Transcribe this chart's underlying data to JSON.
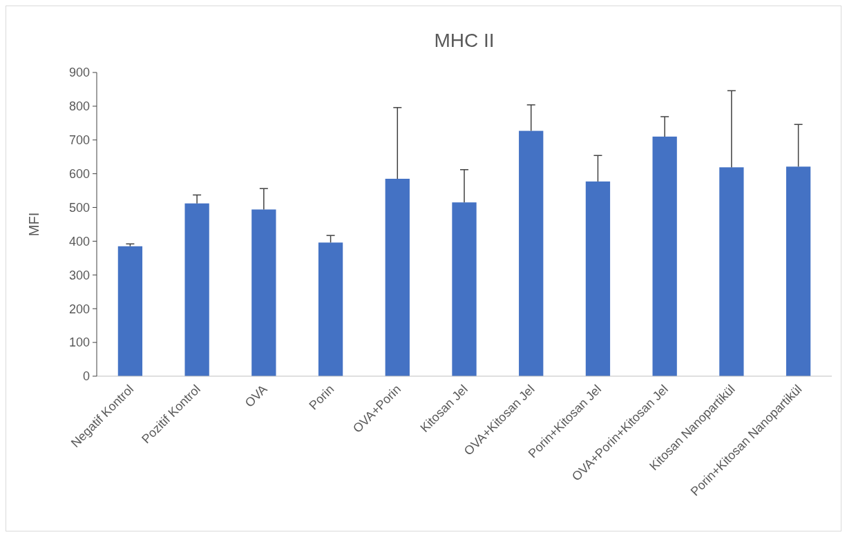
{
  "chart_data": {
    "type": "bar",
    "title": "MHC II",
    "ylabel": "MFI",
    "categories": [
      "Negatif Kontrol",
      "Pozitif Kontrol",
      "OVA",
      "Porin",
      "OVA+Porin",
      "Kitosan Jel",
      "OVA+Kitosan Jel",
      "Porin+Kitosan Jel",
      "OVA+Porin+Kitosan Jel",
      "Kitosan Nanopartikül",
      "Porin+Kitosan Nanopartikül"
    ],
    "values": [
      385,
      512,
      494,
      396,
      585,
      515,
      727,
      577,
      710,
      619,
      621
    ],
    "errors": [
      [
        385,
        392
      ],
      [
        512,
        537
      ],
      [
        494,
        556
      ],
      [
        396,
        417
      ],
      [
        585,
        796
      ],
      [
        515,
        612
      ],
      [
        727,
        804
      ],
      [
        577,
        654
      ],
      [
        710,
        769
      ],
      [
        619,
        846
      ],
      [
        621,
        746
      ]
    ],
    "color": "#4472c4",
    "ylim": [
      0,
      900
    ],
    "yticks": [
      0,
      100,
      200,
      300,
      400,
      500,
      600,
      700,
      800,
      900
    ],
    "grid": false
  }
}
